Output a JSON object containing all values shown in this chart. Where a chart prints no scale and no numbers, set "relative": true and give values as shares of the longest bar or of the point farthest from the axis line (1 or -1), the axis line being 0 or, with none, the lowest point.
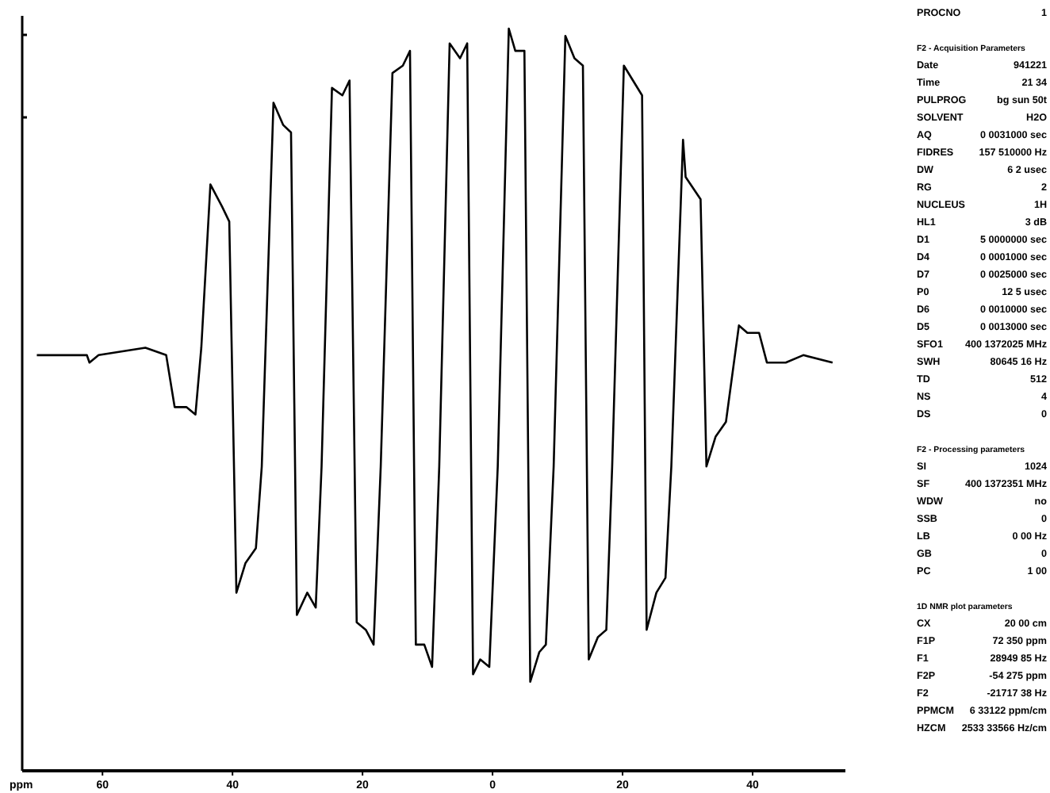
{
  "chart_data": [
    {
      "type": "line",
      "relative": true,
      "xlabel": "ppm",
      "xlim": [
        72.35,
        -54.275
      ],
      "xticks": [
        60,
        40,
        20,
        0,
        {
          "value": -20,
          "label": "20"
        },
        {
          "value": -40,
          "label": "40"
        }
      ],
      "grid": false,
      "marker": "none",
      "line_style": "solid",
      "series": [
        {
          "color": "#000000",
          "x": [
            70.1,
            62.4,
            62.0,
            60.6,
            53.4,
            50.2,
            48.9,
            47.1,
            45.7,
            44.8,
            43.4,
            41.6,
            40.5,
            39.4,
            38.0,
            36.4,
            35.5,
            33.7,
            32.2,
            31.0,
            30.1,
            28.5,
            27.2,
            26.3,
            24.7,
            23.1,
            22.0,
            20.9,
            19.5,
            18.3,
            17.2,
            15.4,
            13.8,
            12.7,
            11.8,
            10.5,
            9.3,
            8.2,
            6.6,
            5.0,
            3.9,
            3.0,
            1.9,
            0.5,
            -0.8,
            -2.5,
            -3.5,
            -4.9,
            -5.8,
            -7.2,
            -8.2,
            -9.4,
            -11.2,
            -12.6,
            -13.9,
            -14.8,
            -16.2,
            -17.5,
            -18.4,
            -20.2,
            -21.6,
            -23.0,
            -23.7,
            -25.2,
            -26.6,
            -27.5,
            -29.3,
            -29.7,
            -32.0,
            -32.9,
            -34.3,
            -35.9,
            -37.9,
            -39.2,
            -41.0,
            -42.2,
            -45.1,
            -47.8,
            -52.3
          ],
          "values": [
            0.56,
            0.56,
            0.55,
            0.56,
            0.57,
            0.56,
            0.49,
            0.49,
            0.48,
            0.57,
            0.79,
            0.76,
            0.74,
            0.24,
            0.28,
            0.3,
            0.41,
            0.9,
            0.87,
            0.86,
            0.21,
            0.24,
            0.22,
            0.41,
            0.92,
            0.91,
            0.93,
            0.2,
            0.19,
            0.17,
            0.41,
            0.94,
            0.95,
            0.97,
            0.17,
            0.17,
            0.14,
            0.41,
            0.98,
            0.96,
            0.98,
            0.13,
            0.15,
            0.14,
            0.41,
            1.0,
            0.97,
            0.97,
            0.12,
            0.16,
            0.17,
            0.41,
            0.99,
            0.96,
            0.95,
            0.15,
            0.18,
            0.19,
            0.41,
            0.95,
            0.93,
            0.91,
            0.19,
            0.24,
            0.26,
            0.41,
            0.85,
            0.8,
            0.77,
            0.41,
            0.45,
            0.47,
            0.6,
            0.59,
            0.59,
            0.55,
            0.55,
            0.56,
            0.55
          ]
        }
      ]
    },
    {
      "type": "other",
      "annotations": [
        "PROCNO\t1",
        "F2 - Acquisition Parameters",
        "Date\t941221",
        "Time\t21 34",
        "PULPROG\tbg sun 50t",
        "SOLVENT\tH2O",
        "AQ\t0 0031000 sec",
        "FIDRES\t157 510000 Hz",
        "DW\t6 2 usec",
        "RG\t2",
        "NUCLEUS\t1H",
        "HL1\t3 dB",
        "D1\t5 0000000 sec",
        "D4\t0 0001000 sec",
        "D7\t0 0025000 sec",
        "P0\t12 5 usec",
        "D6\t0 0010000 sec",
        "D5\t0 0013000 sec",
        "SFO1\t400 1372025 MHz",
        "SWH\t80645 16 Hz",
        "TD\t512",
        "NS\t4",
        "DS\t0",
        "F2 - Processing parameters",
        "SI\t1024",
        "SF\t400 1372351 MHz",
        "WDW\tno",
        "SSB\t0",
        "LB\t0 00 Hz",
        "GB\t0",
        "PC\t1 00",
        "1D NMR plot parameters",
        "CX\t20 00 cm",
        "F1P\t72 350 ppm",
        "F1\t28949 85 Hz",
        "F2P\t-54 275 ppm",
        "F2\t-21717 38 Hz",
        "PPMCM\t6 33122 ppm/cm",
        "HZCM\t2533 33566 Hz/cm"
      ]
    }
  ]
}
